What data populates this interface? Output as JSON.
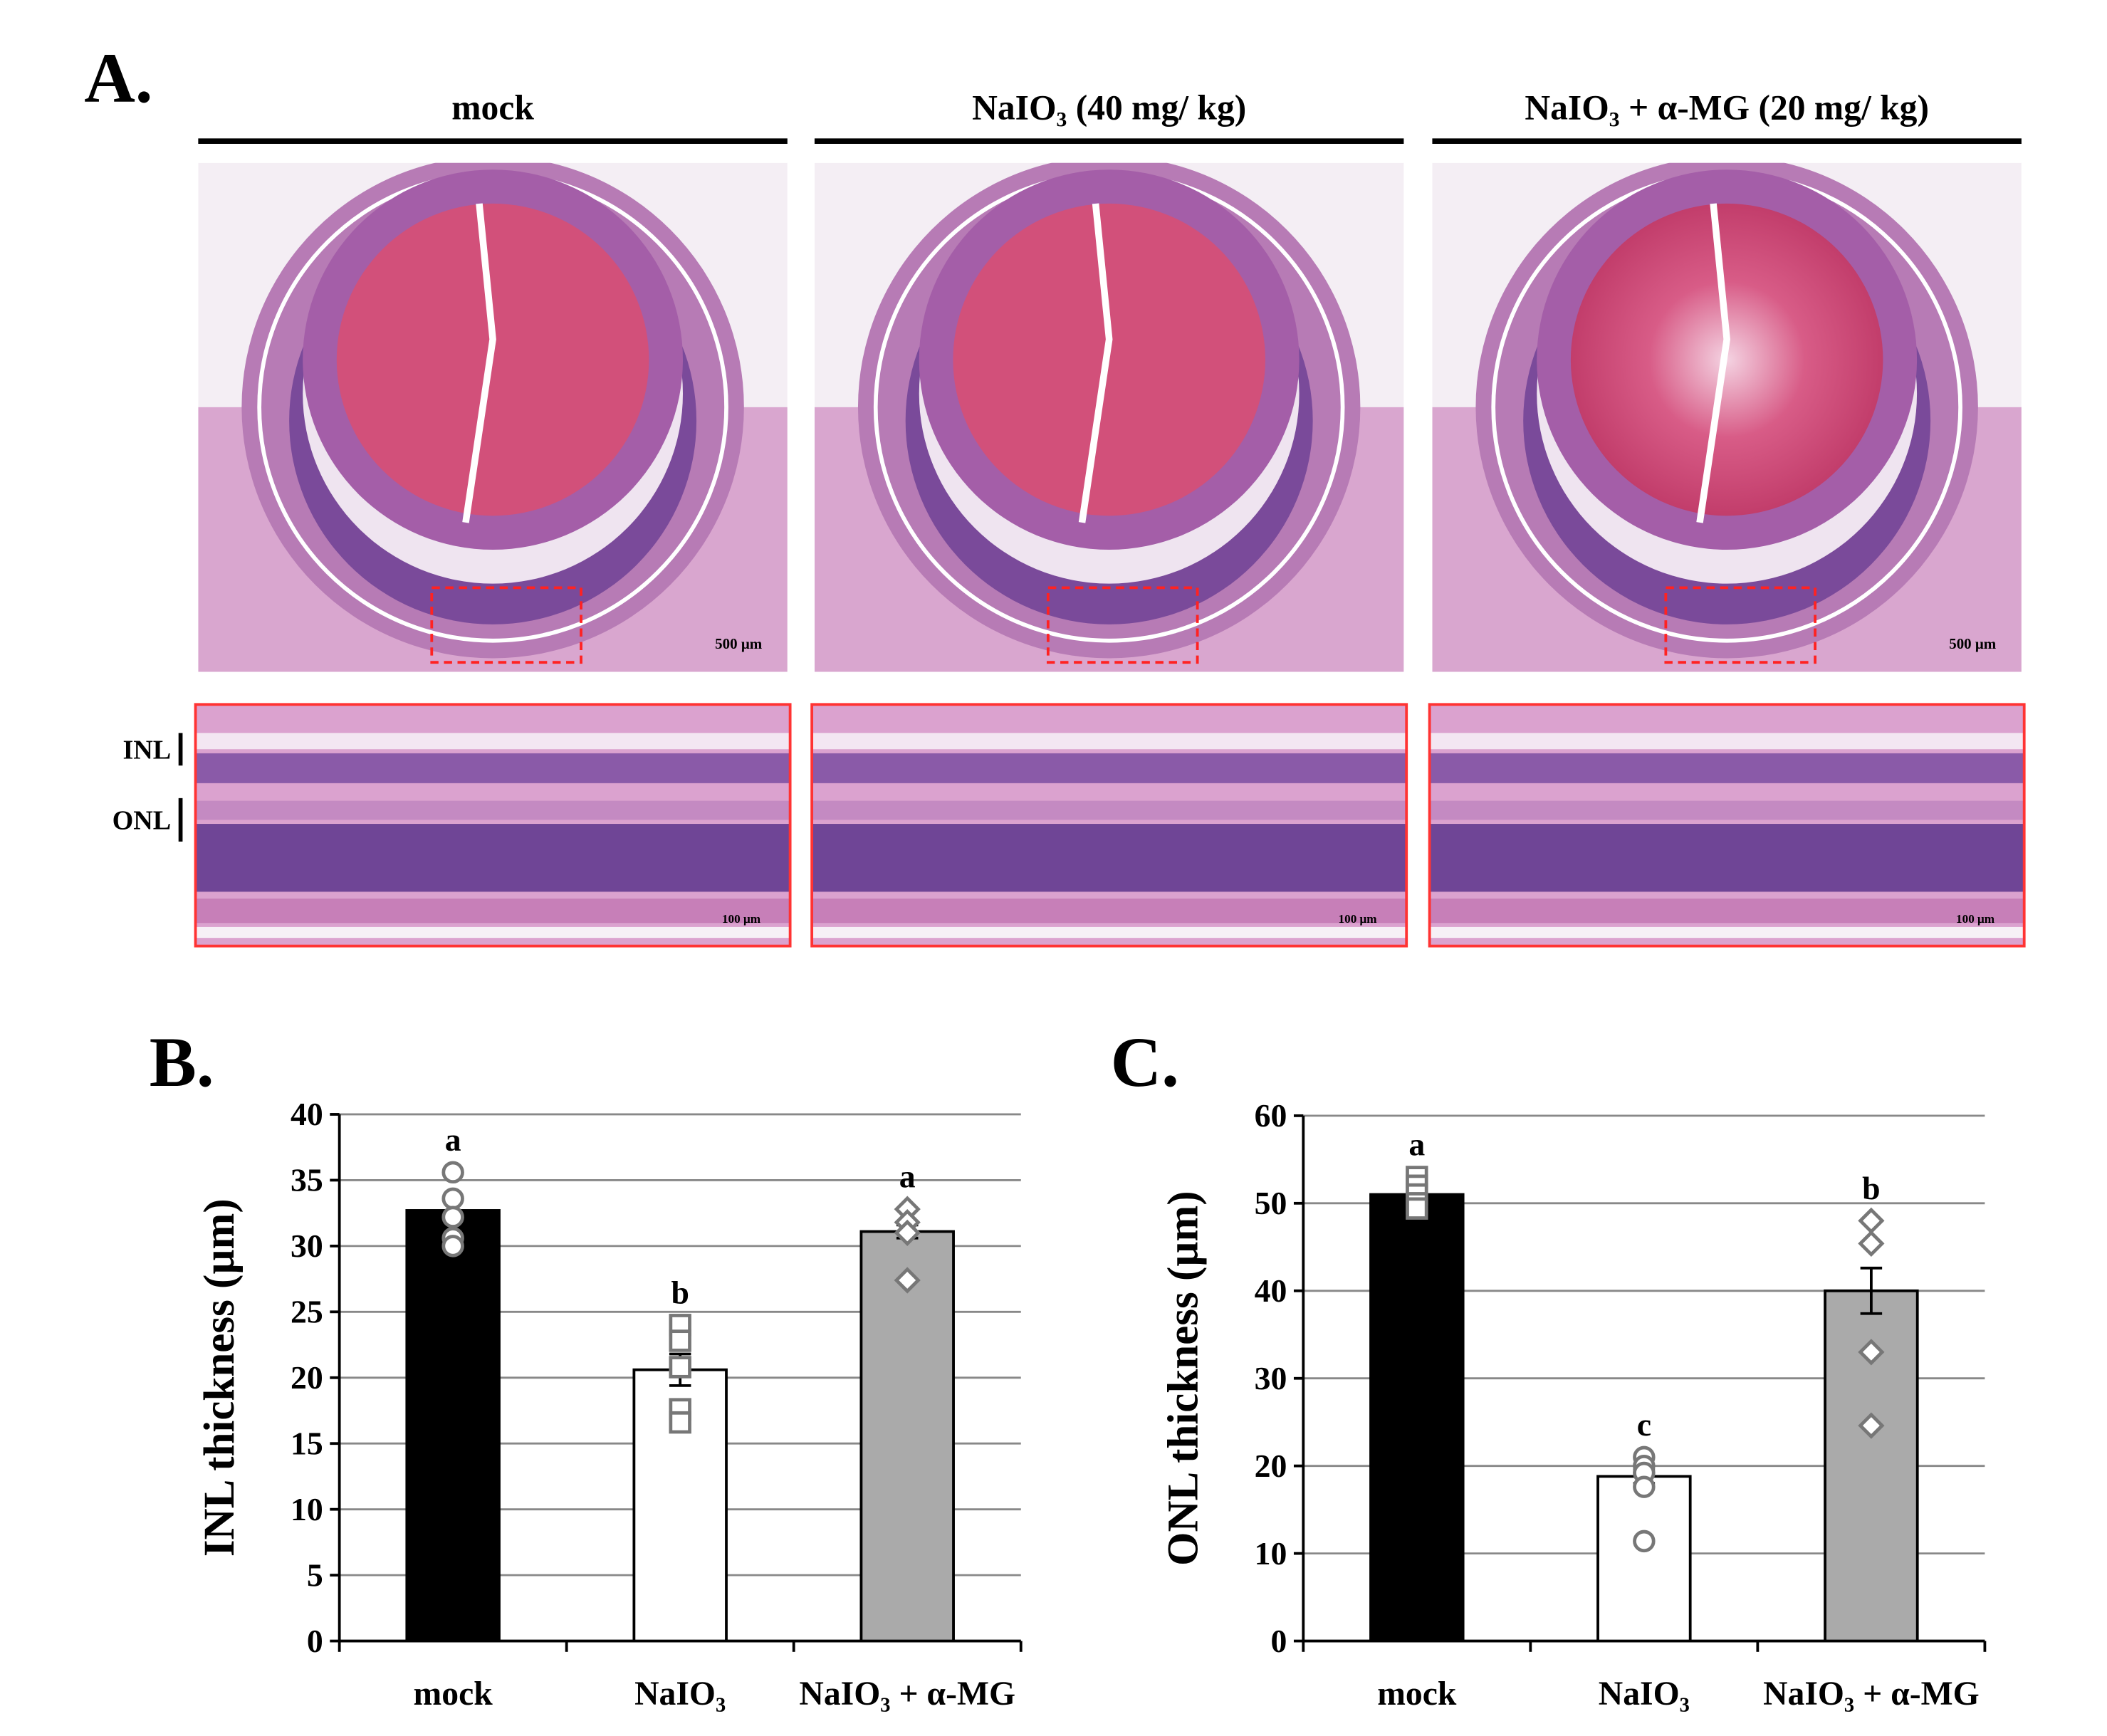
{
  "panel_a": {
    "label": "A.",
    "columns": [
      {
        "title": "mock",
        "scale": "500 μm",
        "zoom_scale": "100 μm"
      },
      {
        "title": "NaIO₃ (40 mg/ kg)",
        "scale": "",
        "zoom_scale": "100 μm"
      },
      {
        "title": "NaIO₃ + α-MG (20 mg/ kg)",
        "scale": "500 μm",
        "zoom_scale": "100 μm"
      }
    ],
    "layers": [
      "INL",
      "ONL"
    ]
  },
  "chart_data": [
    {
      "type": "bar",
      "panel_label": "B.",
      "y_label": "INL thickness (µm)",
      "categories": [
        "mock",
        "NaIO₃",
        "NaIO₃ + α-MG"
      ],
      "values": [
        32.7,
        20.6,
        31.1
      ],
      "errors": [
        0.8,
        1.2,
        0.5
      ],
      "colors": [
        "#000000",
        "#ffffff",
        "#aaaaaa"
      ],
      "significance": [
        "a",
        "b",
        "a"
      ],
      "points": [
        [
          35.6,
          33.6,
          32.2,
          30.6,
          30.0
        ],
        [
          24.0,
          22.8,
          20.8,
          17.6,
          16.6
        ],
        [
          32.8,
          31.8,
          31.0,
          27.4
        ]
      ],
      "point_markers": [
        "circle",
        "square",
        "diamond"
      ],
      "ylim": [
        0,
        40
      ],
      "yticks": [
        0,
        5,
        10,
        15,
        20,
        25,
        30,
        35,
        40
      ],
      "grid": true
    },
    {
      "type": "bar",
      "panel_label": "C.",
      "y_label": "ONL thickness (µm)",
      "categories": [
        "mock",
        "NaIO₃",
        "NaIO₃ + α-MG"
      ],
      "values": [
        51.0,
        18.8,
        40.0
      ],
      "errors": [
        0.6,
        0.8,
        2.6
      ],
      "colors": [
        "#000000",
        "#ffffff",
        "#aaaaaa"
      ],
      "significance": [
        "a",
        "c",
        "b"
      ],
      "points": [
        [
          53.0,
          52.0,
          51.0,
          50.0,
          49.4
        ],
        [
          21.0,
          20.0,
          19.2,
          17.6,
          11.4
        ],
        [
          48.0,
          45.4,
          33.0,
          24.6
        ]
      ],
      "point_markers": [
        "square",
        "circle",
        "diamond"
      ],
      "ylim": [
        0,
        60
      ],
      "yticks": [
        0,
        10,
        20,
        30,
        40,
        50,
        60
      ],
      "grid": true
    }
  ]
}
